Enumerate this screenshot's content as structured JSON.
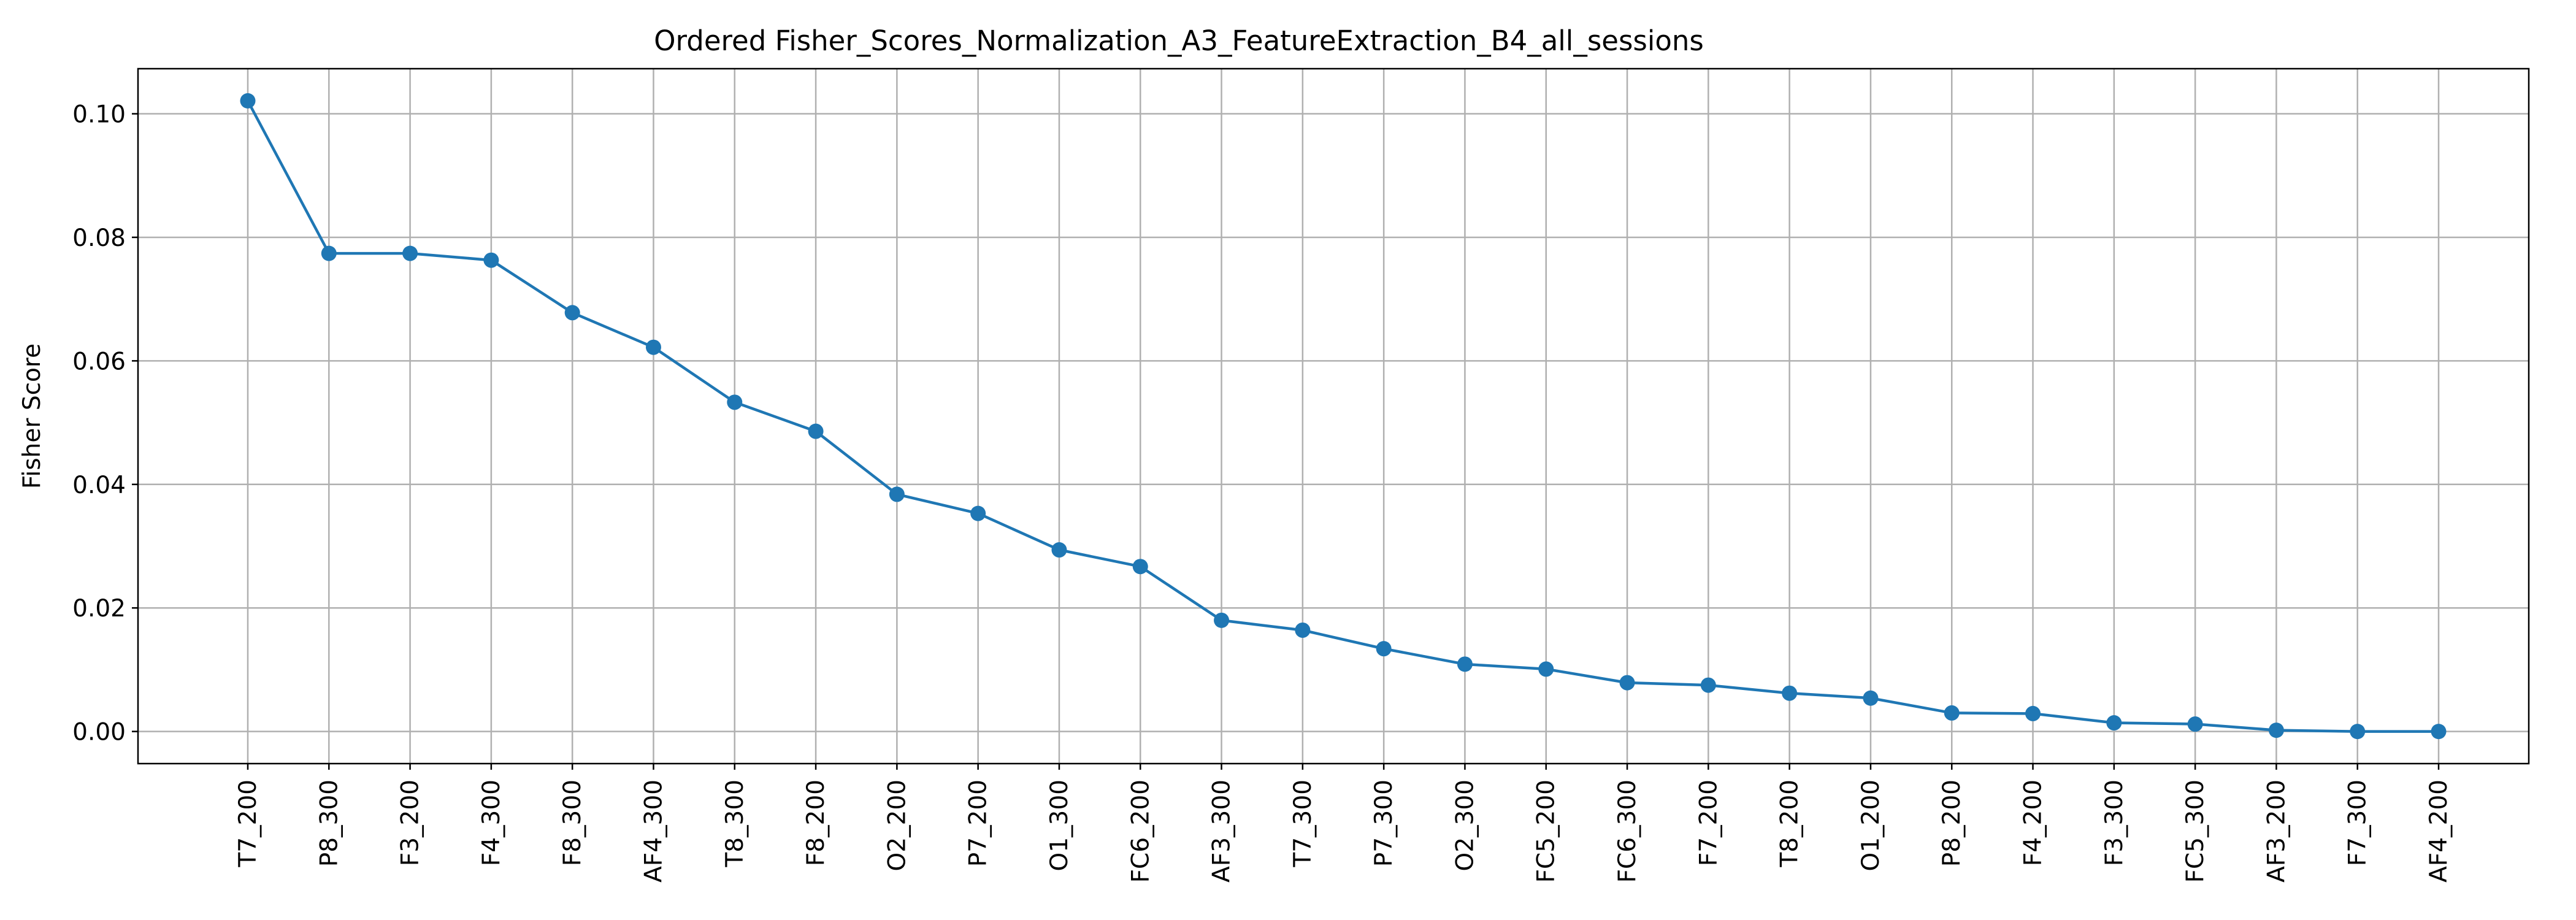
{
  "chart_data": {
    "type": "line",
    "title": "Ordered Fisher_Scores_Normalization_A3_FeatureExtraction_B4_all_sessions",
    "xlabel": "",
    "ylabel": "Fisher Score",
    "ylim": [
      -0.0052,
      0.1073
    ],
    "yticks": [
      0.0,
      0.02,
      0.04,
      0.06,
      0.08,
      0.1
    ],
    "ytick_labels": [
      "0.00",
      "0.02",
      "0.04",
      "0.06",
      "0.08",
      "0.10"
    ],
    "grid": true,
    "line_color": "#1f77b4",
    "categories": [
      "T7_200",
      "P8_300",
      "F3_200",
      "F4_300",
      "F8_300",
      "AF4_300",
      "T8_300",
      "F8_200",
      "O2_200",
      "P7_200",
      "O1_300",
      "FC6_200",
      "AF3_300",
      "T7_300",
      "P7_300",
      "O2_300",
      "FC5_200",
      "FC6_300",
      "F7_200",
      "T8_200",
      "O1_200",
      "P8_200",
      "F4_200",
      "F3_300",
      "FC5_300",
      "AF3_200",
      "F7_300",
      "AF4_200"
    ],
    "values": [
      0.1021,
      0.0774,
      0.0774,
      0.0763,
      0.0678,
      0.0622,
      0.0533,
      0.0486,
      0.0384,
      0.0353,
      0.0294,
      0.0267,
      0.018,
      0.0164,
      0.0134,
      0.0109,
      0.0101,
      0.0079,
      0.0075,
      0.0062,
      0.0054,
      0.003,
      0.0029,
      0.0014,
      0.0012,
      0.0002,
      0.0,
      0.0
    ]
  }
}
